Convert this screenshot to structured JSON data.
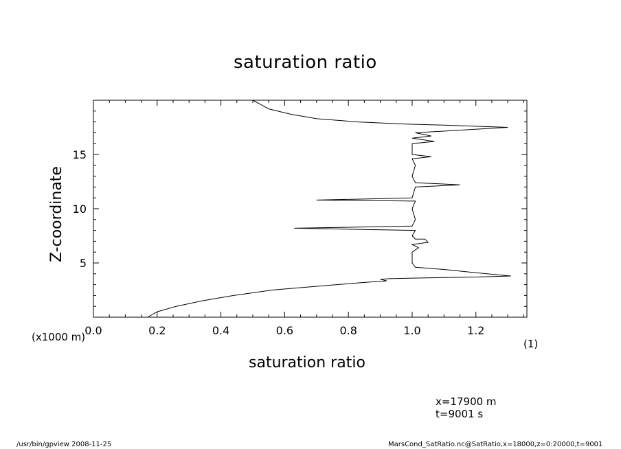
{
  "chart_data": {
    "type": "line",
    "title": "saturation ratio",
    "xlabel": "saturation ratio",
    "ylabel": "Z-coordinate",
    "x_unit": "(1)",
    "y_unit": "(x1000 m)",
    "xlim": [
      0.0,
      1.36
    ],
    "ylim": [
      0,
      20
    ],
    "x_ticks": [
      "0.0",
      "0.2",
      "0.4",
      "0.6",
      "0.8",
      "1.0",
      "1.2"
    ],
    "y_ticks": [
      "5",
      "10",
      "15"
    ],
    "series": [
      {
        "points": [
          [
            0.17,
            0.0
          ],
          [
            0.2,
            0.5
          ],
          [
            0.26,
            1.0
          ],
          [
            0.34,
            1.5
          ],
          [
            0.44,
            2.0
          ],
          [
            0.56,
            2.5
          ],
          [
            0.72,
            2.9
          ],
          [
            0.85,
            3.2
          ],
          [
            0.92,
            3.35
          ],
          [
            0.9,
            3.5
          ],
          [
            0.93,
            3.55
          ],
          [
            1.0,
            3.6
          ],
          [
            1.2,
            3.7
          ],
          [
            1.31,
            3.8
          ],
          [
            1.2,
            4.1
          ],
          [
            1.1,
            4.4
          ],
          [
            1.01,
            4.6
          ],
          [
            1.0,
            5.0
          ],
          [
            1.0,
            6.0
          ],
          [
            1.02,
            6.4
          ],
          [
            1.0,
            6.7
          ],
          [
            1.05,
            6.9
          ],
          [
            1.04,
            7.2
          ],
          [
            1.01,
            7.2
          ],
          [
            1.0,
            7.5
          ],
          [
            1.01,
            8.0
          ],
          [
            0.63,
            8.2
          ],
          [
            1.0,
            8.4
          ],
          [
            1.01,
            9.0
          ],
          [
            1.0,
            10.0
          ],
          [
            1.01,
            10.7
          ],
          [
            0.7,
            10.8
          ],
          [
            1.0,
            11.0
          ],
          [
            1.01,
            12.0
          ],
          [
            1.15,
            12.2
          ],
          [
            1.01,
            12.4
          ],
          [
            1.0,
            13.0
          ],
          [
            1.01,
            14.0
          ],
          [
            1.0,
            14.6
          ],
          [
            1.06,
            14.8
          ],
          [
            1.0,
            15.0
          ],
          [
            1.0,
            16.0
          ],
          [
            1.07,
            16.2
          ],
          [
            1.0,
            16.5
          ],
          [
            1.06,
            16.7
          ],
          [
            1.01,
            17.0
          ],
          [
            1.3,
            17.5
          ],
          [
            1.1,
            17.7
          ],
          [
            0.98,
            17.8
          ],
          [
            0.83,
            18.0
          ],
          [
            0.7,
            18.3
          ],
          [
            0.62,
            18.7
          ],
          [
            0.55,
            19.2
          ],
          [
            0.5,
            20.0
          ]
        ]
      }
    ],
    "grid": false
  },
  "annotations": {
    "info_line_1": "x=17900  m",
    "info_line_2": "t=9001  s"
  },
  "footer": {
    "left": "/usr/bin/gpview   2008-11-25",
    "right": "MarsCond_SatRatio.nc@SatRatio,x=18000,z=0:20000,t=9001"
  }
}
